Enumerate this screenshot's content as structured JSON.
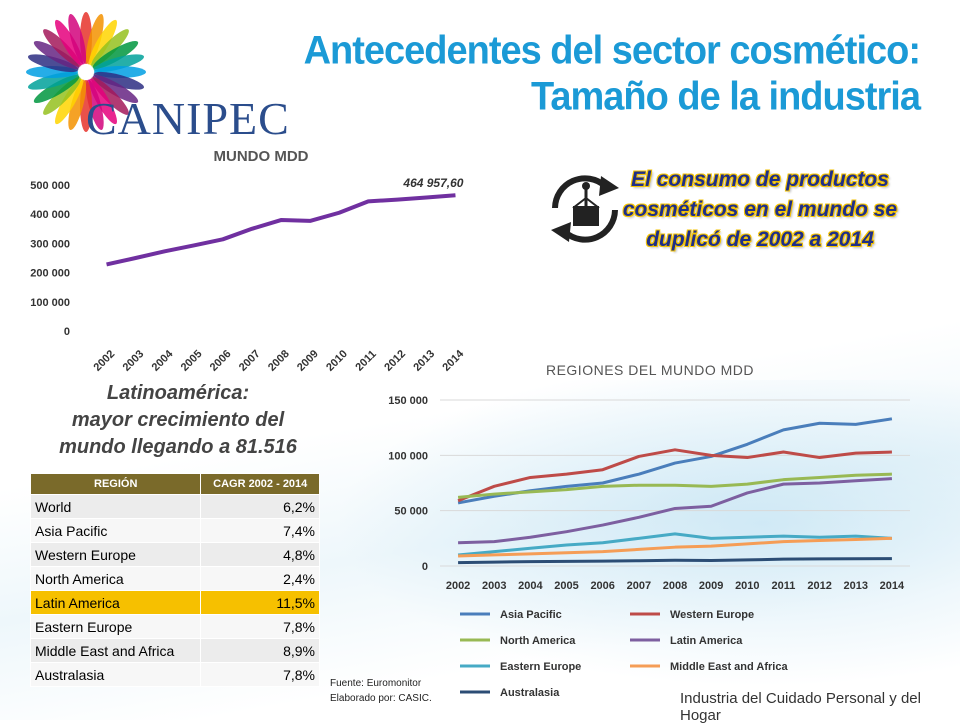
{
  "logo": {
    "name": "CANIPEC"
  },
  "title": {
    "line1": "Antecedentes del sector cosmético:",
    "line2": "Tamaño de la industria"
  },
  "callout": {
    "text": "El consumo de productos cosméticos en el mundo se duplicó de 2002 a 2014",
    "icon": "cycle-arrows-crane-icon"
  },
  "latam": {
    "line1": "Latinoamérica:",
    "line2": "mayor crecimiento del",
    "line3": "mundo llegando a 81.516"
  },
  "table": {
    "headers": [
      "REGIÓN",
      "CAGR 2002 - 2014"
    ],
    "highlight_color": "#f6c000",
    "rows": [
      {
        "region": "World",
        "cagr": "6,2%"
      },
      {
        "region": "Asia Pacific",
        "cagr": "7,4%"
      },
      {
        "region": "Western Europe",
        "cagr": "4,8%"
      },
      {
        "region": "North America",
        "cagr": "2,4%"
      },
      {
        "region": "Latin America",
        "cagr": "11,5%",
        "highlight": true
      },
      {
        "region": "Eastern Europe",
        "cagr": "7,8%"
      },
      {
        "region": "Middle East and Africa",
        "cagr": "8,9%"
      },
      {
        "region": "Australasia",
        "cagr": "7,8%"
      }
    ]
  },
  "source": {
    "line1": "Fuente: Euromonitor",
    "line2": "Elaborado por: CASIC."
  },
  "footer": {
    "text": "Industria del Cuidado Personal y del Hogar"
  },
  "chart_data": [
    {
      "type": "line",
      "title": "MUNDO MDD",
      "x": [
        "2002",
        "2003",
        "2004",
        "2005",
        "2006",
        "2007",
        "2008",
        "2009",
        "2010",
        "2011",
        "2012",
        "2013",
        "2014"
      ],
      "series": [
        {
          "color": "#7030a0",
          "values": [
            228000,
            250000,
            273000,
            293000,
            314000,
            350000,
            380000,
            377000,
            405000,
            444000,
            450000,
            457000,
            464957.6
          ]
        }
      ],
      "annotation": "464 957,60",
      "yticks": [
        "0",
        "100 000",
        "200 000",
        "300 000",
        "400 000",
        "500 000"
      ],
      "ylim": [
        0,
        500000
      ],
      "grid": false,
      "legend": "none"
    },
    {
      "type": "line",
      "title": "REGIONES DEL MUNDO MDD",
      "x": [
        "2002",
        "2003",
        "2004",
        "2005",
        "2006",
        "2007",
        "2008",
        "2009",
        "2010",
        "2011",
        "2012",
        "2013",
        "2014"
      ],
      "yticks": [
        "0",
        "50 000",
        "100 000",
        "150 000"
      ],
      "ylim": [
        0,
        150000
      ],
      "grid": true,
      "legend": "bottom",
      "series": [
        {
          "name": "Asia Pacific",
          "color": "#4a7ebb",
          "values": [
            57000,
            63000,
            68000,
            72000,
            75000,
            83000,
            93000,
            99000,
            110000,
            123000,
            129000,
            128000,
            133000
          ]
        },
        {
          "name": "Western Europe",
          "color": "#be4b48",
          "values": [
            59000,
            72000,
            80000,
            83000,
            87000,
            99000,
            105000,
            100000,
            98000,
            103000,
            98000,
            102000,
            103000
          ]
        },
        {
          "name": "North America",
          "color": "#98b954",
          "values": [
            62000,
            65000,
            67000,
            69000,
            72000,
            73000,
            73000,
            72000,
            74000,
            78000,
            80000,
            82000,
            83000
          ]
        },
        {
          "name": "Latin America",
          "color": "#7d5fa0",
          "values": [
            21000,
            22000,
            26000,
            31000,
            37000,
            44000,
            52000,
            54000,
            66000,
            74000,
            75000,
            77000,
            79000
          ]
        },
        {
          "name": "Eastern Europe",
          "color": "#46aac5",
          "values": [
            10000,
            13000,
            16000,
            19000,
            21000,
            25000,
            29000,
            25000,
            26000,
            27000,
            26000,
            27000,
            25000
          ]
        },
        {
          "name": "Middle East and Africa",
          "color": "#f59d56",
          "values": [
            9000,
            10000,
            11000,
            12000,
            13000,
            15000,
            17000,
            18000,
            20000,
            22000,
            23000,
            24000,
            25000
          ]
        },
        {
          "name": "Australasia",
          "color": "#2c4d75",
          "values": [
            3000,
            3500,
            4000,
            4200,
            4400,
            4800,
            5200,
            5000,
            5500,
            6200,
            6400,
            6500,
            6700
          ]
        }
      ]
    }
  ]
}
